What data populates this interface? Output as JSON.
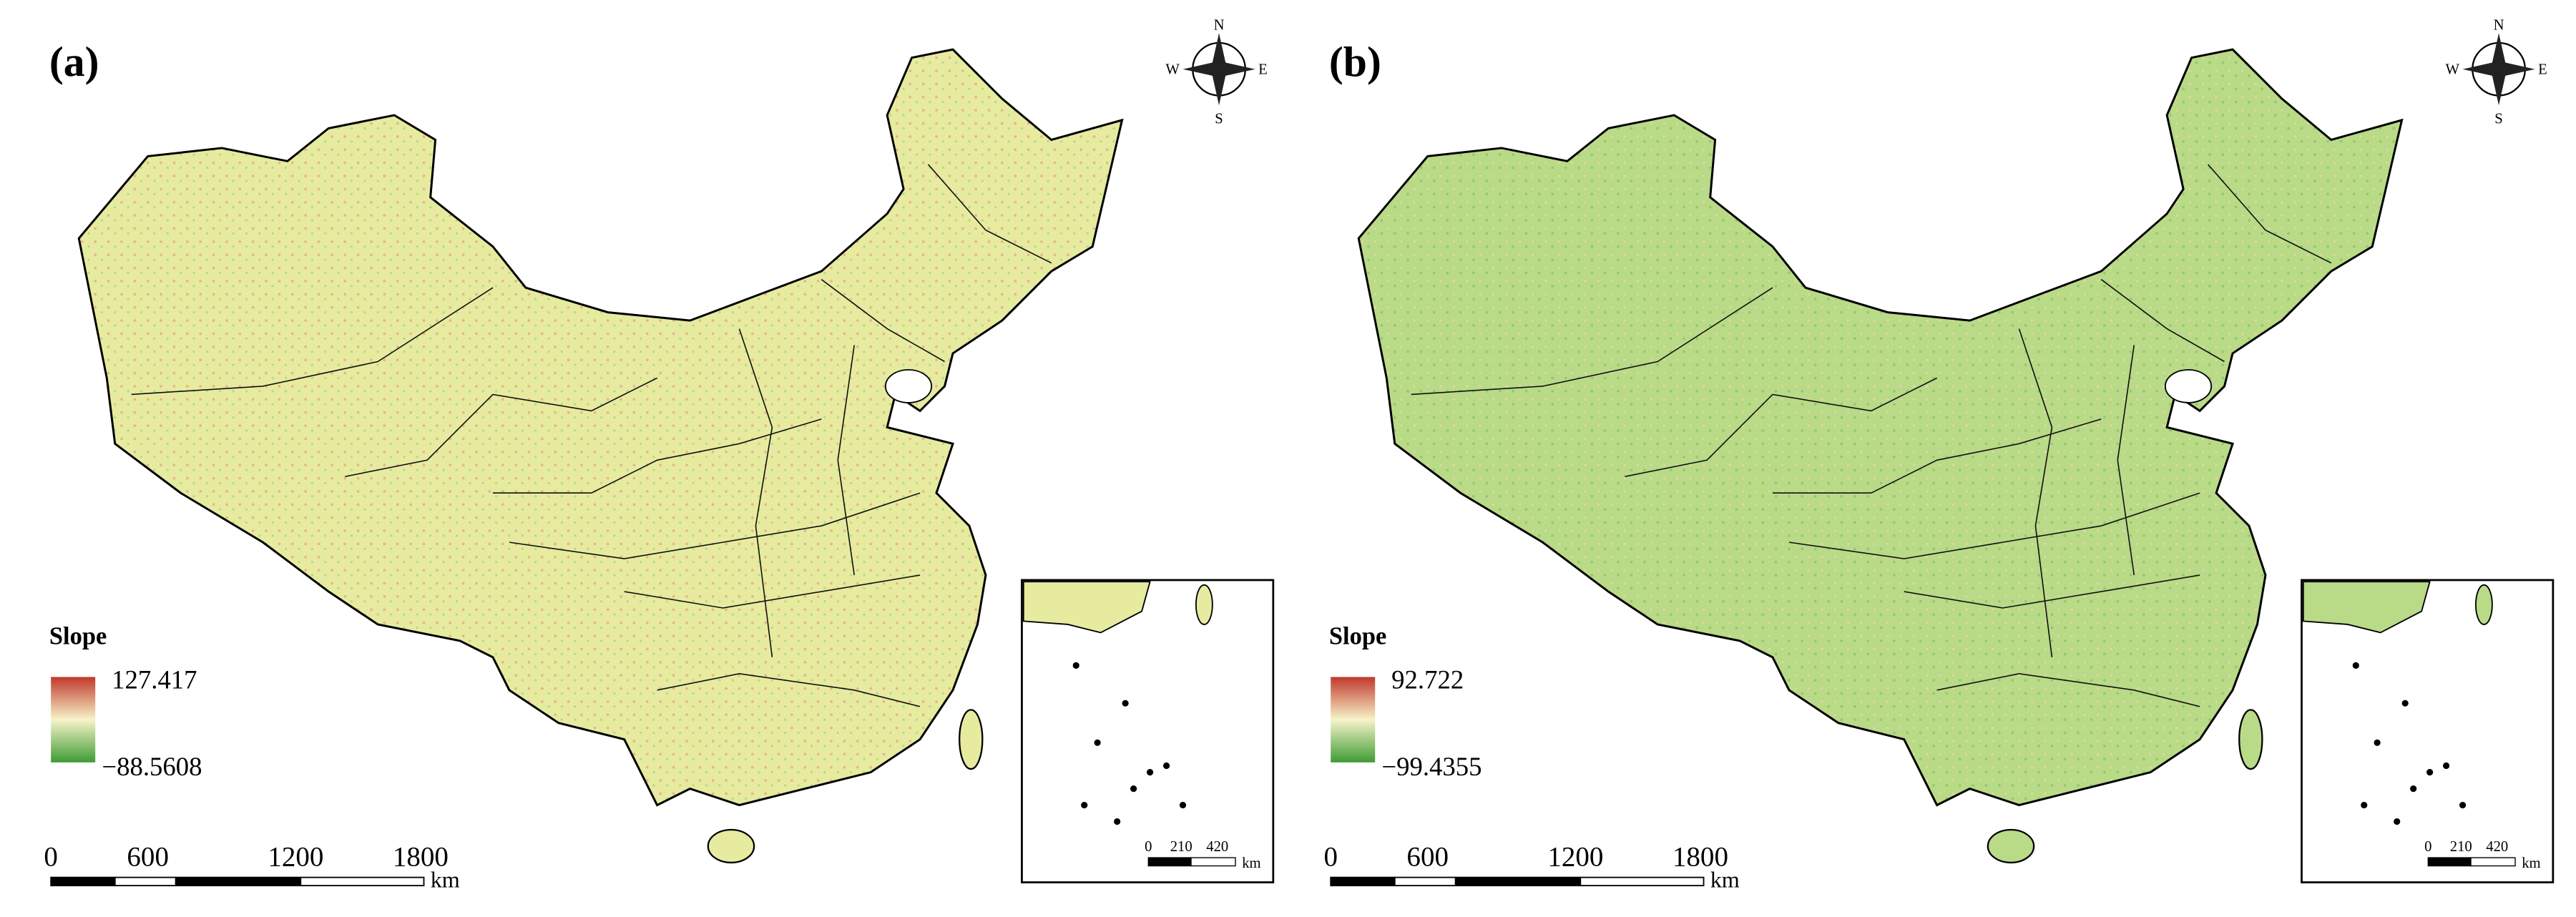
{
  "panels": [
    {
      "label": "(a)",
      "legend": {
        "title": "Slope",
        "max": "127.417",
        "min": "−88.5608"
      },
      "scale_bar": {
        "ticks": [
          "0",
          "600",
          "1200",
          "1800"
        ],
        "unit": "km"
      },
      "inset_scale": {
        "ticks": [
          "0",
          "210",
          "420"
        ],
        "unit": "km"
      },
      "compass": {
        "n": "N",
        "s": "S",
        "e": "E",
        "w": "W"
      }
    },
    {
      "label": "(b)",
      "legend": {
        "title": "Slope",
        "max": "92.722",
        "min": "−99.4355"
      },
      "scale_bar": {
        "ticks": [
          "0",
          "600",
          "1200",
          "1800"
        ],
        "unit": "km"
      },
      "inset_scale": {
        "ticks": [
          "0",
          "210",
          "420"
        ],
        "unit": "km"
      },
      "compass": {
        "n": "N",
        "s": "S",
        "e": "E",
        "w": "W"
      }
    }
  ]
}
